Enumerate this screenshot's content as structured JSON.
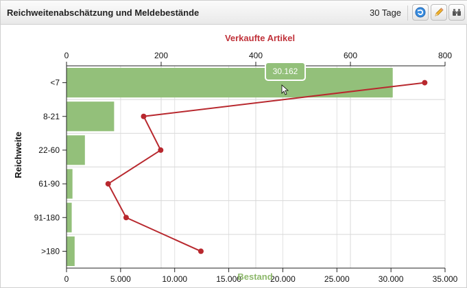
{
  "header": {
    "title": "Reichweitenabschätzung und Meldebestände",
    "period": "30 Tage",
    "icons": [
      "refresh-icon",
      "pencil-icon",
      "binoculars-icon"
    ]
  },
  "colors": {
    "bar": "#93c07a",
    "line": "#b8282e",
    "top_axis_title": "#c0323a",
    "bottom_axis_title": "#8db86b"
  },
  "tooltip": {
    "text": "30.162"
  },
  "chart_data": {
    "type": "bar",
    "title": "",
    "categories": [
      "<7",
      "8-21",
      "22-60",
      "61-90",
      "91-180",
      ">180"
    ],
    "ylabel": "Reichweite",
    "series": [
      {
        "name": "Bestand",
        "type": "bar",
        "axis": "bottom",
        "values": [
          30162,
          4400,
          1700,
          550,
          480,
          750
        ]
      },
      {
        "name": "Verkaufte Artikel",
        "type": "line",
        "axis": "top",
        "values": [
          757,
          163,
          199,
          88,
          126,
          284
        ]
      }
    ],
    "top_axis": {
      "title": "Verkaufte Artikel",
      "min": 0,
      "max": 800,
      "ticks": [
        "0",
        "200",
        "400",
        "600",
        "800"
      ]
    },
    "bottom_axis": {
      "title": "Bestand",
      "min": 0,
      "max": 35000,
      "ticks": [
        "0",
        "5.000",
        "10.000",
        "15.000",
        "20.000",
        "25.000",
        "30.000",
        "35.000"
      ]
    },
    "grid": true
  }
}
